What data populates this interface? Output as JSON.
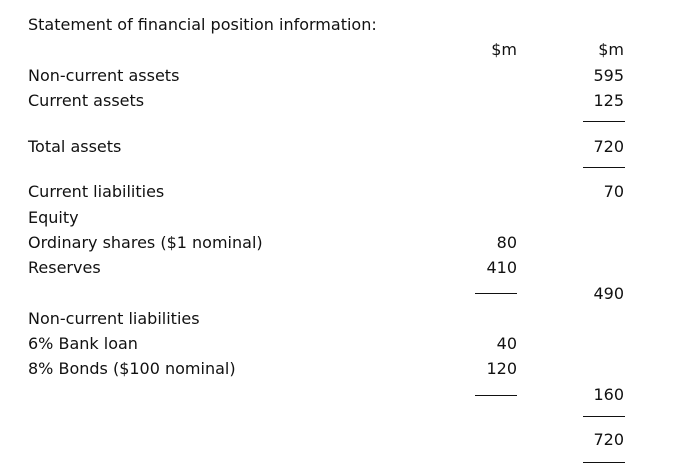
{
  "title": "Statement of financial position information:",
  "col1_header": "$m",
  "col2_header": "$m",
  "rows": {
    "non_current_assets": {
      "label": "Non-current assets",
      "col2": "595"
    },
    "current_assets": {
      "label": "Current assets",
      "col2": "125"
    },
    "total_assets": {
      "label": "Total assets",
      "col2": "720"
    },
    "current_liabilities": {
      "label": "Current liabilities",
      "col2": "70"
    },
    "equity": {
      "label": "Equity"
    },
    "ordinary_shares": {
      "label": "Ordinary shares ($1 nominal)",
      "col1": "80"
    },
    "reserves": {
      "label": "Reserves",
      "col1": "410"
    },
    "equity_total": {
      "col2": "490"
    },
    "non_current_liabilities": {
      "label": "Non-current liabilities"
    },
    "bank_loan": {
      "label": "6% Bank loan",
      "col1": "40"
    },
    "bonds": {
      "label": "8% Bonds ($100 nominal)",
      "col1": "120"
    },
    "ncl_total": {
      "col2": "160"
    },
    "grand_total": {
      "col2": "720"
    }
  }
}
